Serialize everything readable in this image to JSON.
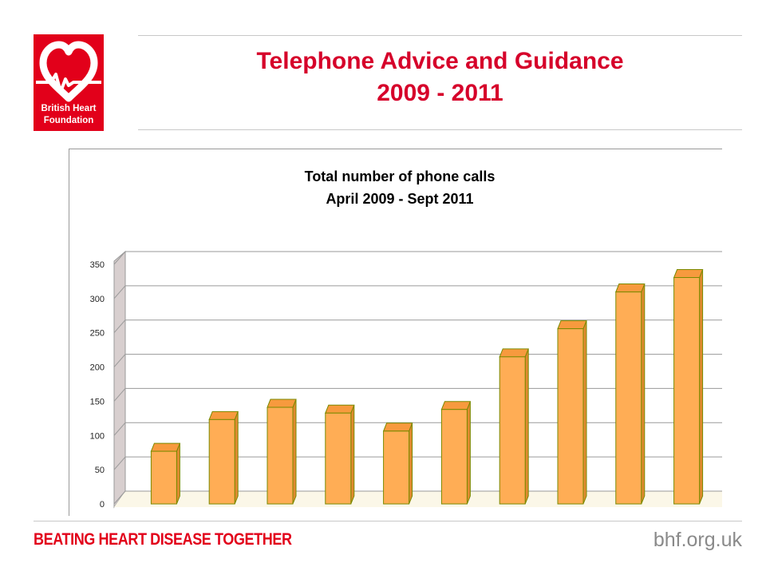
{
  "logo": {
    "line1": "British Heart",
    "line2": "Foundation",
    "icon": "heart-pulse-icon",
    "color": "#e2001a"
  },
  "slide": {
    "title_line1": "Telephone Advice and Guidance",
    "title_line2": "2009 - 2011",
    "title_color": "#d6002a"
  },
  "chart_data": {
    "type": "bar",
    "title": "Total number of phone calls",
    "subtitle": "April 2009 - Sept 2011",
    "categories": [
      "",
      "",
      "",
      "",
      "",
      "",
      "",
      "",
      "",
      ""
    ],
    "values": [
      73,
      117,
      134,
      126,
      101,
      131,
      204,
      243,
      294,
      314
    ],
    "ylim": [
      0,
      350
    ],
    "yticks": [
      0,
      50,
      100,
      150,
      200,
      250,
      300,
      350
    ],
    "grid": true,
    "legend": "none",
    "bar_color": "#ffad55",
    "bar_edge_color": "#7a8a00"
  },
  "footer": {
    "tagline": "BEATING HEART DISEASE TOGETHER",
    "site": "bhf.org.uk"
  }
}
